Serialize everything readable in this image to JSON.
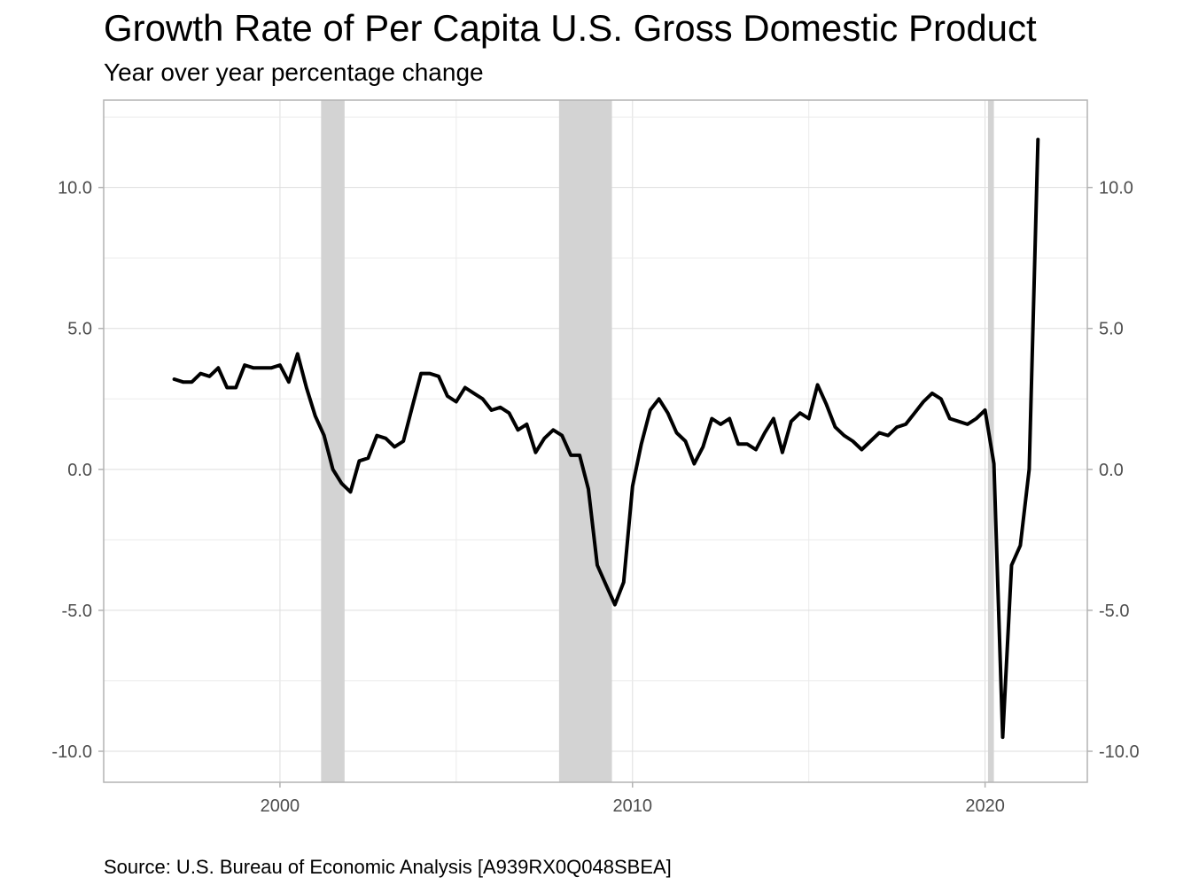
{
  "chart_data": {
    "type": "line",
    "title": "Growth Rate of Per Capita U.S. Gross Domestic Product",
    "subtitle": "Year over year percentage change",
    "caption": "Source: U.S. Bureau of Economic Analysis [A939RX0Q048SBEA]",
    "xlabel": "",
    "ylabel": "",
    "xlim": [
      1995,
      2022.9
    ],
    "ylim": [
      -11.1,
      13.1
    ],
    "x_ticks": [
      2000,
      2010,
      2020
    ],
    "x_tick_labels": [
      "2000",
      "2010",
      "2020"
    ],
    "y_ticks": [
      -10,
      -5,
      0,
      5,
      10
    ],
    "y_tick_labels": [
      "-10.0",
      "-5.0",
      "0.0",
      "5.0",
      "10.0"
    ],
    "y_axis_secondary": true,
    "grid": true,
    "line_color": "#000000",
    "recession_color": "#d3d3d3",
    "recessions": [
      {
        "start": "2001-03",
        "end": "2001-11"
      },
      {
        "start": "2007-12",
        "end": "2009-06"
      },
      {
        "start": "2020-02",
        "end": "2020-04"
      }
    ],
    "series": [
      {
        "x": [
          1997.0,
          1997.25,
          1997.5,
          1997.75,
          1998.0,
          1998.25,
          1998.5,
          1998.75,
          1999.0,
          1999.25,
          1999.5,
          1999.75,
          2000.0,
          2000.25,
          2000.5,
          2000.75,
          2001.0,
          2001.25,
          2001.5,
          2001.75,
          2002.0,
          2002.25,
          2002.5,
          2002.75,
          2003.0,
          2003.25,
          2003.5,
          2003.75,
          2004.0,
          2004.25,
          2004.5,
          2004.75,
          2005.0,
          2005.25,
          2005.5,
          2005.75,
          2006.0,
          2006.25,
          2006.5,
          2006.75,
          2007.0,
          2007.25,
          2007.5,
          2007.75,
          2008.0,
          2008.25,
          2008.5,
          2008.75,
          2009.0,
          2009.25,
          2009.5,
          2009.75,
          2010.0,
          2010.25,
          2010.5,
          2010.75,
          2011.0,
          2011.25,
          2011.5,
          2011.75,
          2012.0,
          2012.25,
          2012.5,
          2012.75,
          2013.0,
          2013.25,
          2013.5,
          2013.75,
          2014.0,
          2014.25,
          2014.5,
          2014.75,
          2015.0,
          2015.25,
          2015.5,
          2015.75,
          2016.0,
          2016.25,
          2016.5,
          2016.75,
          2017.0,
          2017.25,
          2017.5,
          2017.75,
          2018.0,
          2018.25,
          2018.5,
          2018.75,
          2019.0,
          2019.25,
          2019.5,
          2019.75,
          2020.0,
          2020.25,
          2020.5,
          2020.75,
          2021.0,
          2021.25,
          2021.5
        ],
        "values": [
          3.2,
          3.1,
          3.1,
          3.4,
          3.3,
          3.6,
          2.9,
          2.9,
          3.7,
          3.6,
          3.6,
          3.6,
          3.7,
          3.1,
          4.1,
          2.9,
          1.9,
          1.2,
          0.0,
          -0.5,
          -0.8,
          0.3,
          0.4,
          1.2,
          1.1,
          0.8,
          1.0,
          2.2,
          3.4,
          3.4,
          3.3,
          2.6,
          2.4,
          2.9,
          2.7,
          2.5,
          2.1,
          2.2,
          2.0,
          1.4,
          1.6,
          0.6,
          1.1,
          1.4,
          1.2,
          0.5,
          0.5,
          -0.7,
          -3.4,
          -4.1,
          -4.8,
          -4.0,
          -0.6,
          0.9,
          2.1,
          2.5,
          2.0,
          1.3,
          1.0,
          0.2,
          0.8,
          1.8,
          1.6,
          1.8,
          0.9,
          0.9,
          0.7,
          1.3,
          1.8,
          0.6,
          1.7,
          2.0,
          1.8,
          3.0,
          2.3,
          1.5,
          1.2,
          1.0,
          0.7,
          1.0,
          1.3,
          1.2,
          1.5,
          1.6,
          2.0,
          2.4,
          2.7,
          2.5,
          1.8,
          1.7,
          1.6,
          1.8,
          2.1,
          0.2,
          -9.5,
          -3.4,
          -2.7,
          0.0,
          11.7
        ]
      }
    ]
  }
}
